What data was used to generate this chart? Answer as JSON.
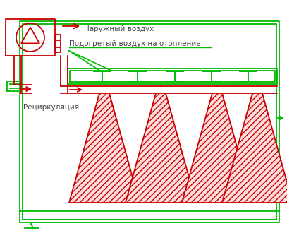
{
  "bg_color": "#ffffff",
  "green": "#00bb00",
  "red": "#cc0000",
  "text_color": "#444444",
  "label_naruzh": "Наружный воздух",
  "label_podogr": "Подогретый воздух на отопление",
  "label_recirc": "Рециркуляция",
  "fig_width": 4.07,
  "fig_height": 3.37,
  "dpi": 100,
  "xlim": [
    0,
    407
  ],
  "ylim": [
    0,
    337
  ]
}
